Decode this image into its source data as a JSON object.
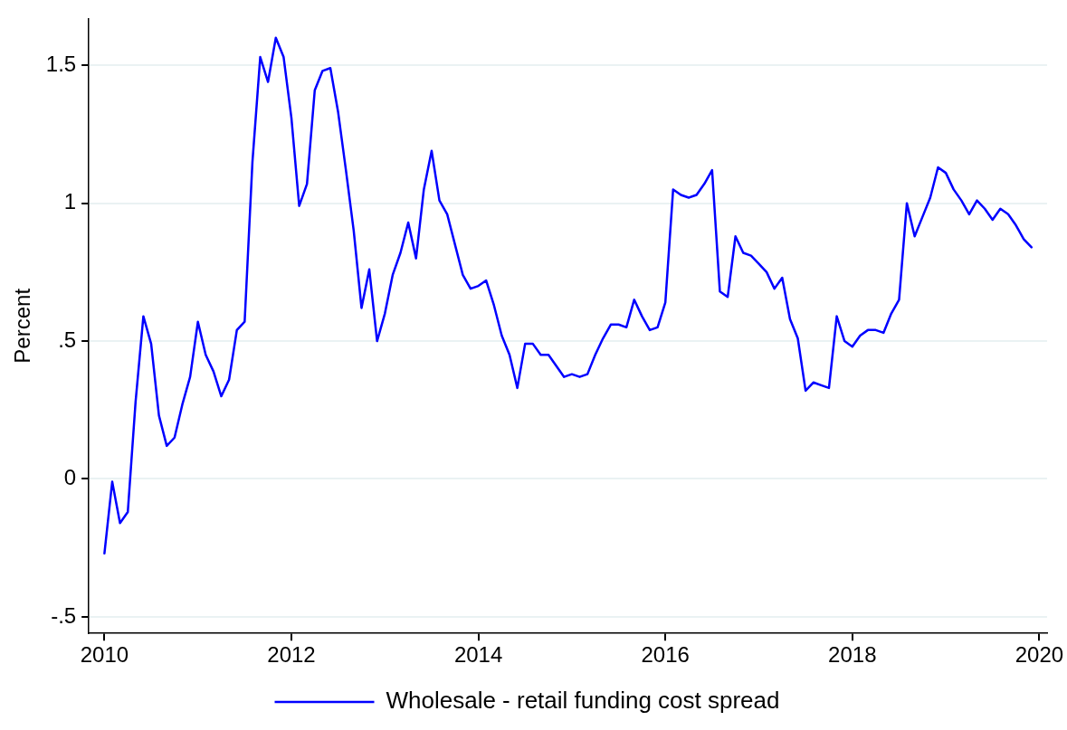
{
  "chart_data": {
    "type": "line",
    "ylabel": "Percent",
    "x": [
      "2010-01",
      "2010-02",
      "2010-03",
      "2010-04",
      "2010-05",
      "2010-06",
      "2010-07",
      "2010-08",
      "2010-09",
      "2010-10",
      "2010-11",
      "2010-12",
      "2011-01",
      "2011-02",
      "2011-03",
      "2011-04",
      "2011-05",
      "2011-06",
      "2011-07",
      "2011-08",
      "2011-09",
      "2011-10",
      "2011-11",
      "2011-12",
      "2012-01",
      "2012-02",
      "2012-03",
      "2012-04",
      "2012-05",
      "2012-06",
      "2012-07",
      "2012-08",
      "2012-09",
      "2012-10",
      "2012-11",
      "2012-12",
      "2013-01",
      "2013-02",
      "2013-03",
      "2013-04",
      "2013-05",
      "2013-06",
      "2013-07",
      "2013-08",
      "2013-09",
      "2013-10",
      "2013-11",
      "2013-12",
      "2014-01",
      "2014-02",
      "2014-03",
      "2014-04",
      "2014-05",
      "2014-06",
      "2014-07",
      "2014-08",
      "2014-09",
      "2014-10",
      "2014-11",
      "2014-12",
      "2015-01",
      "2015-02",
      "2015-03",
      "2015-04",
      "2015-05",
      "2015-06",
      "2015-07",
      "2015-08",
      "2015-09",
      "2015-10",
      "2015-11",
      "2015-12",
      "2016-01",
      "2016-02",
      "2016-03",
      "2016-04",
      "2016-05",
      "2016-06",
      "2016-07",
      "2016-08",
      "2016-09",
      "2016-10",
      "2016-11",
      "2016-12",
      "2017-01",
      "2017-02",
      "2017-03",
      "2017-04",
      "2017-05",
      "2017-06",
      "2017-07",
      "2017-08",
      "2017-09",
      "2017-10",
      "2017-11",
      "2017-12",
      "2018-01",
      "2018-02",
      "2018-03",
      "2018-04",
      "2018-05",
      "2018-06",
      "2018-07",
      "2018-08",
      "2018-09",
      "2018-10",
      "2018-11",
      "2018-12",
      "2019-01",
      "2019-02",
      "2019-03",
      "2019-04",
      "2019-05",
      "2019-06",
      "2019-07",
      "2019-08",
      "2019-09",
      "2019-10",
      "2019-11",
      "2019-12"
    ],
    "series": [
      {
        "name": "Wholesale - retail funding cost spread",
        "color": "#0000ff",
        "values": [
          -0.27,
          -0.01,
          -0.16,
          -0.12,
          0.28,
          0.59,
          0.49,
          0.23,
          0.12,
          0.15,
          0.27,
          0.37,
          0.57,
          0.45,
          0.39,
          0.3,
          0.36,
          0.54,
          0.57,
          1.15,
          1.53,
          1.44,
          1.6,
          1.53,
          1.31,
          0.99,
          1.07,
          1.41,
          1.48,
          1.49,
          1.33,
          1.12,
          0.9,
          0.62,
          0.76,
          0.5,
          0.6,
          0.74,
          0.82,
          0.93,
          0.8,
          1.05,
          1.19,
          1.01,
          0.96,
          0.85,
          0.74,
          0.69,
          0.7,
          0.72,
          0.63,
          0.52,
          0.45,
          0.33,
          0.49,
          0.49,
          0.45,
          0.45,
          0.41,
          0.37,
          0.38,
          0.37,
          0.38,
          0.45,
          0.51,
          0.56,
          0.56,
          0.55,
          0.65,
          0.59,
          0.54,
          0.55,
          0.64,
          1.05,
          1.03,
          1.02,
          1.03,
          1.07,
          1.12,
          0.68,
          0.66,
          0.88,
          0.82,
          0.81,
          0.78,
          0.75,
          0.69,
          0.73,
          0.58,
          0.51,
          0.32,
          0.35,
          0.34,
          0.33,
          0.59,
          0.5,
          0.48,
          0.52,
          0.54,
          0.54,
          0.53,
          0.6,
          0.65,
          1.0,
          0.88,
          0.95,
          1.02,
          1.13,
          1.11,
          1.05,
          1.01,
          0.96,
          1.01,
          0.98,
          0.94,
          0.98,
          0.96,
          0.92,
          0.87,
          0.84
        ]
      }
    ],
    "xlim": [
      "2009-11",
      "2020-02"
    ],
    "xticks": [
      "2010",
      "2012",
      "2014",
      "2016",
      "2018",
      "2020"
    ],
    "ylim": [
      -0.56,
      1.67
    ],
    "yticks": [
      {
        "value": -0.5,
        "label": "-.5"
      },
      {
        "value": 0,
        "label": "0"
      },
      {
        "value": 0.5,
        "label": ".5"
      },
      {
        "value": 1,
        "label": "1"
      },
      {
        "value": 1.5,
        "label": "1.5"
      }
    ],
    "grid": "y",
    "legend": "bottom",
    "marker": "none",
    "line_style": "solid"
  }
}
